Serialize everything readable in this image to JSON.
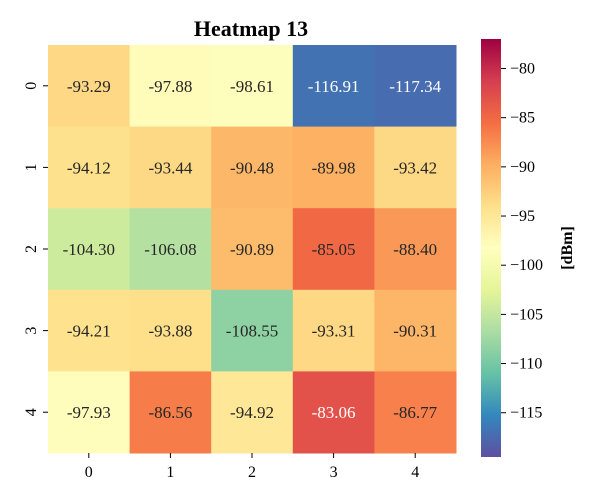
{
  "chart_data": {
    "type": "heatmap",
    "title": "Heatmap 13",
    "x_categories": [
      "0",
      "1",
      "2",
      "3",
      "4"
    ],
    "y_categories": [
      "0",
      "1",
      "2",
      "3",
      "4"
    ],
    "values": [
      [
        -93.29,
        -97.88,
        -98.61,
        -116.91,
        -117.34
      ],
      [
        -94.12,
        -93.44,
        -90.48,
        -89.98,
        -93.42
      ],
      [
        -104.3,
        -106.08,
        -90.89,
        -85.05,
        -88.4
      ],
      [
        -94.21,
        -93.88,
        -108.55,
        -93.31,
        -90.31
      ],
      [
        -97.93,
        -86.56,
        -94.92,
        -83.06,
        -86.77
      ]
    ],
    "value_labels": [
      [
        "-93.29",
        "-97.88",
        "-98.61",
        "-116.91",
        "-117.34"
      ],
      [
        "-94.12",
        "-93.44",
        "-90.48",
        "-89.98",
        "-93.42"
      ],
      [
        "-104.30",
        "-106.08",
        "-90.89",
        "-85.05",
        "-88.40"
      ],
      [
        "-94.21",
        "-93.88",
        "-108.55",
        "-93.31",
        "-90.31"
      ],
      [
        "-97.93",
        "-86.56",
        "-94.92",
        "-83.06",
        "-86.77"
      ]
    ],
    "colormap": "Spectral_r",
    "vmin": -119.5,
    "vmax": -77,
    "colorbar": {
      "label": "[dBm]",
      "ticks": [
        -80,
        -85,
        -90,
        -95,
        -100,
        -105,
        -110,
        -115
      ],
      "tick_labels": [
        "−80",
        "−85",
        "−90",
        "−95",
        "−100",
        "−105",
        "−110",
        "−115"
      ]
    }
  }
}
